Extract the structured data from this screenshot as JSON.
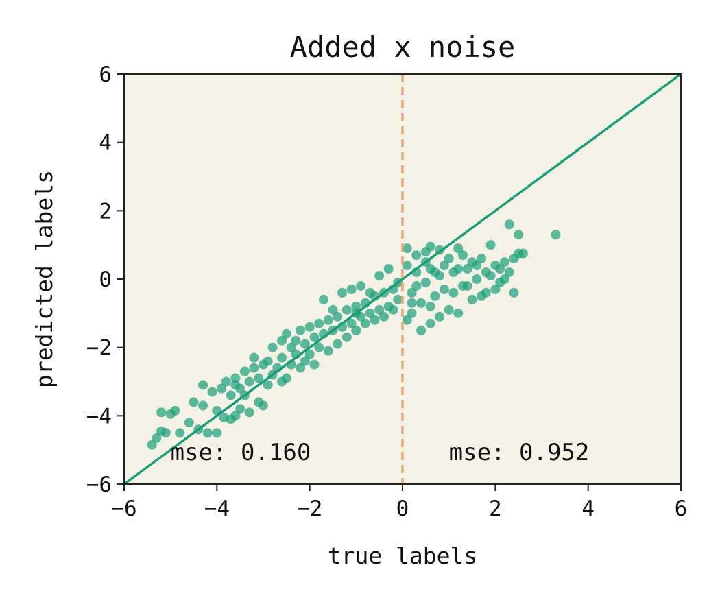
{
  "chart_data": {
    "type": "scatter",
    "title": "Added x noise",
    "xlabel": "true labels",
    "ylabel": "predicted labels",
    "xlim": [
      -6,
      6
    ],
    "ylim": [
      -6,
      6
    ],
    "xticks": [
      "−6",
      "−4",
      "−2",
      "0",
      "2",
      "4",
      "6"
    ],
    "yticks": [
      "−6",
      "−4",
      "−2",
      "0",
      "2",
      "4",
      "6"
    ],
    "grid": false,
    "background": "#f4f1e6",
    "point_color": "#1a9e77",
    "identity_line": {
      "x": [
        -6,
        6
      ],
      "y": [
        -6,
        6
      ],
      "color": "#1a9e77"
    },
    "divider_line": {
      "x": 0,
      "style": "dashed",
      "color": "#e8a878"
    },
    "annotations": [
      {
        "text": "mse: 0.160",
        "x": -5.0,
        "y": -5.3
      },
      {
        "text": "mse: 0.952",
        "x": 1.0,
        "y": -5.3
      }
    ],
    "series": [
      {
        "points": [
          [
            -5.4,
            -4.85
          ],
          [
            -5.3,
            -4.65
          ],
          [
            -5.2,
            -4.45
          ],
          [
            -5.1,
            -4.5
          ],
          [
            -5.0,
            -3.95
          ],
          [
            -5.2,
            -3.9
          ],
          [
            -4.9,
            -3.85
          ],
          [
            -4.8,
            -4.5
          ],
          [
            -4.6,
            -4.2
          ],
          [
            -4.4,
            -4.4
          ],
          [
            -4.2,
            -4.5
          ],
          [
            -4.0,
            -4.5
          ],
          [
            -4.0,
            -3.85
          ],
          [
            -3.85,
            -4.05
          ],
          [
            -3.7,
            -4.1
          ],
          [
            -3.6,
            -4.0
          ],
          [
            -4.5,
            -3.6
          ],
          [
            -4.3,
            -3.7
          ],
          [
            -3.5,
            -3.8
          ],
          [
            -3.3,
            -3.9
          ],
          [
            -3.1,
            -3.6
          ],
          [
            -3.0,
            -3.7
          ],
          [
            -4.3,
            -3.1
          ],
          [
            -4.1,
            -3.3
          ],
          [
            -3.9,
            -3.2
          ],
          [
            -3.7,
            -3.4
          ],
          [
            -3.8,
            -3.0
          ],
          [
            -3.6,
            -2.9
          ],
          [
            -3.5,
            -3.2
          ],
          [
            -3.3,
            -3.0
          ],
          [
            -3.2,
            -2.6
          ],
          [
            -3.1,
            -2.9
          ],
          [
            -2.9,
            -3.1
          ],
          [
            -2.8,
            -2.8
          ],
          [
            -3.0,
            -2.5
          ],
          [
            -3.2,
            -2.3
          ],
          [
            -2.9,
            -2.4
          ],
          [
            -2.7,
            -2.6
          ],
          [
            -2.6,
            -2.3
          ],
          [
            -2.5,
            -2.9
          ],
          [
            -2.4,
            -2.5
          ],
          [
            -2.3,
            -2.2
          ],
          [
            -2.2,
            -2.6
          ],
          [
            -2.0,
            -2.2
          ],
          [
            -1.9,
            -2.5
          ],
          [
            -1.8,
            -2.0
          ],
          [
            -2.8,
            -2.0
          ],
          [
            -2.6,
            -1.8
          ],
          [
            -2.5,
            -1.6
          ],
          [
            -2.3,
            -1.8
          ],
          [
            -2.2,
            -1.5
          ],
          [
            -2.1,
            -1.9
          ],
          [
            -2.0,
            -1.4
          ],
          [
            -1.9,
            -1.7
          ],
          [
            -1.8,
            -1.3
          ],
          [
            -1.7,
            -1.6
          ],
          [
            -1.6,
            -1.2
          ],
          [
            -1.5,
            -1.5
          ],
          [
            -1.4,
            -1.1
          ],
          [
            -1.3,
            -1.4
          ],
          [
            -1.2,
            -0.9
          ],
          [
            -1.1,
            -1.3
          ],
          [
            -1.0,
            -0.8
          ],
          [
            -0.9,
            -1.1
          ],
          [
            -0.8,
            -0.7
          ],
          [
            -0.7,
            -1.0
          ],
          [
            -0.6,
            -0.5
          ],
          [
            -0.5,
            -0.9
          ],
          [
            -0.4,
            -0.4
          ],
          [
            -0.3,
            -0.8
          ],
          [
            -0.2,
            -0.3
          ],
          [
            -0.1,
            -0.6
          ],
          [
            -1.6,
            -2.1
          ],
          [
            -1.4,
            -1.9
          ],
          [
            -1.2,
            -1.7
          ],
          [
            -1.0,
            -1.5
          ],
          [
            -0.8,
            -1.3
          ],
          [
            -0.6,
            -1.2
          ],
          [
            -1.7,
            -0.6
          ],
          [
            -1.3,
            -0.4
          ],
          [
            -1.1,
            -0.3
          ],
          [
            -0.9,
            -0.2
          ],
          [
            -0.5,
            0.1
          ],
          [
            -0.3,
            0.3
          ],
          [
            -3.4,
            -2.7
          ],
          [
            -3.4,
            -3.4
          ],
          [
            -3.6,
            -3.1
          ],
          [
            -2.6,
            -3.0
          ],
          [
            -2.4,
            -2.0
          ],
          [
            -2.1,
            -2.4
          ],
          [
            -1.5,
            -0.9
          ],
          [
            -1.0,
            -1.0
          ],
          [
            -0.7,
            -0.4
          ],
          [
            -0.4,
            -1.1
          ],
          [
            -0.2,
            -0.9
          ],
          [
            -0.1,
            -0.1
          ],
          [
            0.1,
            0.9
          ],
          [
            0.3,
            0.7
          ],
          [
            0.5,
            0.8
          ],
          [
            0.6,
            0.95
          ],
          [
            0.8,
            0.85
          ],
          [
            1.0,
            0.6
          ],
          [
            1.2,
            0.9
          ],
          [
            1.3,
            0.7
          ],
          [
            1.5,
            0.5
          ],
          [
            1.7,
            0.6
          ],
          [
            1.9,
            1.0
          ],
          [
            2.1,
            0.3
          ],
          [
            2.2,
            0.5
          ],
          [
            2.3,
            0.2
          ],
          [
            2.4,
            0.6
          ],
          [
            2.5,
            0.75
          ],
          [
            2.6,
            0.75
          ],
          [
            2.3,
            1.6
          ],
          [
            2.5,
            1.3
          ],
          [
            3.3,
            1.3
          ],
          [
            0.1,
            -1.2
          ],
          [
            0.2,
            -1.0
          ],
          [
            0.4,
            -1.5
          ],
          [
            0.6,
            -1.3
          ],
          [
            0.8,
            -1.1
          ],
          [
            1.0,
            -0.9
          ],
          [
            1.2,
            -1.0
          ],
          [
            1.5,
            -0.6
          ],
          [
            1.8,
            -0.4
          ],
          [
            2.0,
            -0.3
          ],
          [
            2.2,
            0.0
          ],
          [
            2.4,
            -0.4
          ],
          [
            0.2,
            -0.4
          ],
          [
            0.3,
            0.2
          ],
          [
            0.5,
            -0.1
          ],
          [
            0.6,
            0.3
          ],
          [
            0.7,
            -0.5
          ],
          [
            0.8,
            0.1
          ],
          [
            0.9,
            -0.3
          ],
          [
            1.1,
            0.2
          ],
          [
            1.3,
            -0.2
          ],
          [
            1.4,
            0.3
          ],
          [
            1.6,
            0.0
          ],
          [
            1.7,
            -0.5
          ],
          [
            1.9,
            0.1
          ],
          [
            2.0,
            0.4
          ],
          [
            0.4,
            -0.7
          ],
          [
            0.1,
            0.4
          ],
          [
            0.2,
            -0.7
          ],
          [
            0.5,
            0.5
          ],
          [
            0.7,
            0.2
          ],
          [
            0.9,
            0.4
          ],
          [
            1.1,
            -0.4
          ],
          [
            1.2,
            0.3
          ],
          [
            1.4,
            -0.2
          ],
          [
            1.6,
            0.4
          ],
          [
            1.8,
            0.2
          ],
          [
            2.1,
            -0.1
          ],
          [
            0.3,
            -0.2
          ],
          [
            0.6,
            -0.8
          ]
        ]
      }
    ]
  }
}
